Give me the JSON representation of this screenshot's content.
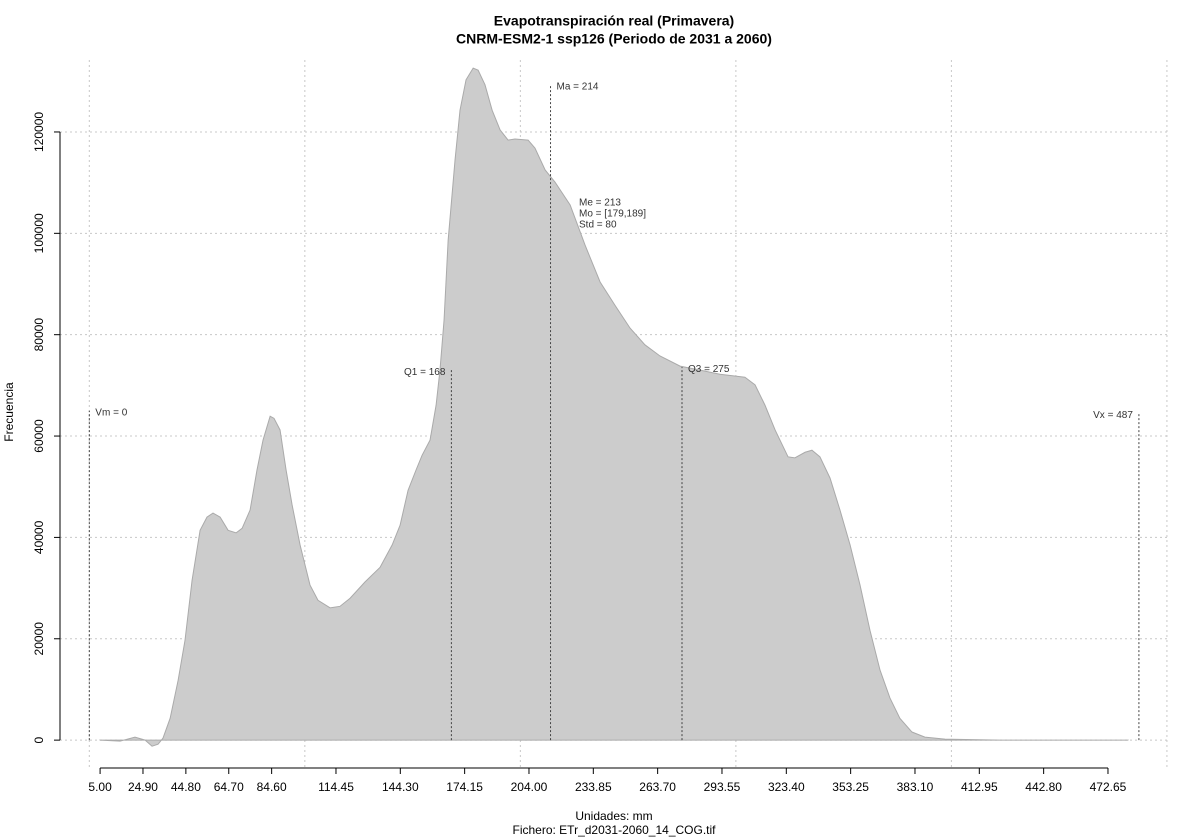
{
  "chart_data": {
    "type": "area",
    "title": "Evapotranspiración real (Primavera)",
    "subtitle": "CNRM-ESM2-1 ssp126 (Periodo de 2031 a 2060)",
    "xlabel": "Unidades: mm",
    "caption": "Fichero: ETr_d2031-2060_14_COG.tif",
    "ylabel": "Frecuencia",
    "color": "#cccccc",
    "grid": true,
    "xlim": [
      -13.6,
      500.5
    ],
    "ylim": [
      -5500,
      134200
    ],
    "xgrid": [
      0,
      100,
      200,
      300,
      400,
      500
    ],
    "yticks": [
      0,
      20000,
      40000,
      60000,
      80000,
      100000,
      120000
    ],
    "xticks": [
      {
        "value": 5,
        "label": "5.00"
      },
      {
        "value": 24.9,
        "label": "24.90"
      },
      {
        "value": 44.8,
        "label": "44.80"
      },
      {
        "value": 64.7,
        "label": "64.70"
      },
      {
        "value": 84.6,
        "label": "84.60"
      },
      114.45,
      {
        "value": 144.3,
        "label": "144.30"
      },
      174.15,
      {
        "value": 204,
        "label": "204.00"
      },
      233.85,
      {
        "value": 263.7,
        "label": "263.70"
      },
      293.55,
      {
        "value": 323.4,
        "label": "323.40"
      },
      353.25,
      {
        "value": 383.1,
        "label": "383.10"
      },
      412.95,
      {
        "value": 442.8,
        "label": "442.80"
      },
      472.65
    ],
    "x": [
      5,
      14.3,
      21.2,
      25.9,
      29.1,
      31.9,
      34.2,
      37.5,
      41.2,
      44.4,
      47.7,
      51.4,
      54.6,
      57.4,
      60.7,
      64.4,
      68.1,
      70.9,
      74.6,
      77.8,
      80.6,
      83.9,
      85.7,
      88.5,
      91.3,
      94.1,
      97.8,
      102.4,
      106.1,
      111.7,
      116.3,
      121,
      127.9,
      134.9,
      140.5,
      144.2,
      147.9,
      151.6,
      154.4,
      158.1,
      160.9,
      162.7,
      164.6,
      166.5,
      169.7,
      172,
      174.8,
      178.1,
      180.4,
      183.6,
      186.9,
      190.6,
      194.3,
      197.5,
      203.6,
      206.8,
      211.5,
      216.1,
      223.1,
      230,
      237,
      243.9,
      250.9,
      257.8,
      264.8,
      274.1,
      283.4,
      292.6,
      304.2,
      308.9,
      313.5,
      318.2,
      324.2,
      327.4,
      332.1,
      335.3,
      339,
      343.7,
      348.3,
      353,
      357.6,
      362.2,
      366.9,
      371.5,
      376.1,
      381.7,
      387.7,
      397,
      422.5,
      481.9
    ],
    "values": [
      0,
      -200,
      600,
      0,
      -1200,
      -800,
      400,
      4300,
      11800,
      19700,
      31600,
      41400,
      44000,
      44800,
      44000,
      41400,
      40900,
      41800,
      45400,
      53300,
      59200,
      63900,
      63500,
      61200,
      53300,
      46400,
      38500,
      30600,
      27600,
      26100,
      26400,
      28000,
      31200,
      34100,
      38500,
      42400,
      49300,
      53300,
      56200,
      59200,
      66100,
      73000,
      82900,
      98700,
      114500,
      124300,
      130300,
      132600,
      132200,
      129300,
      124300,
      120400,
      118400,
      118600,
      118400,
      116800,
      112500,
      110100,
      105600,
      97700,
      90400,
      85800,
      81300,
      78000,
      75800,
      73800,
      73000,
      72200,
      71600,
      70100,
      66100,
      61200,
      55900,
      55700,
      56800,
      57200,
      55900,
      51700,
      45400,
      38500,
      30600,
      21700,
      13800,
      8300,
      4300,
      1600,
      600,
      200,
      0,
      0
    ],
    "annotations": [
      {
        "label": "Vm = 0",
        "x": 0,
        "y": 65000
      },
      {
        "label": "Q1 = 168",
        "x": 168,
        "y": 73000
      },
      {
        "label": "Ma = 214",
        "x": 214,
        "y": 129300
      },
      {
        "label": "Q3 = 275",
        "x": 275,
        "y": 73600
      },
      {
        "label": "Vx = 487",
        "x": 487,
        "y": 64500
      }
    ],
    "stats": [
      "Me = 213",
      "Mo = [179,189]",
      "Std = 80"
    ]
  }
}
